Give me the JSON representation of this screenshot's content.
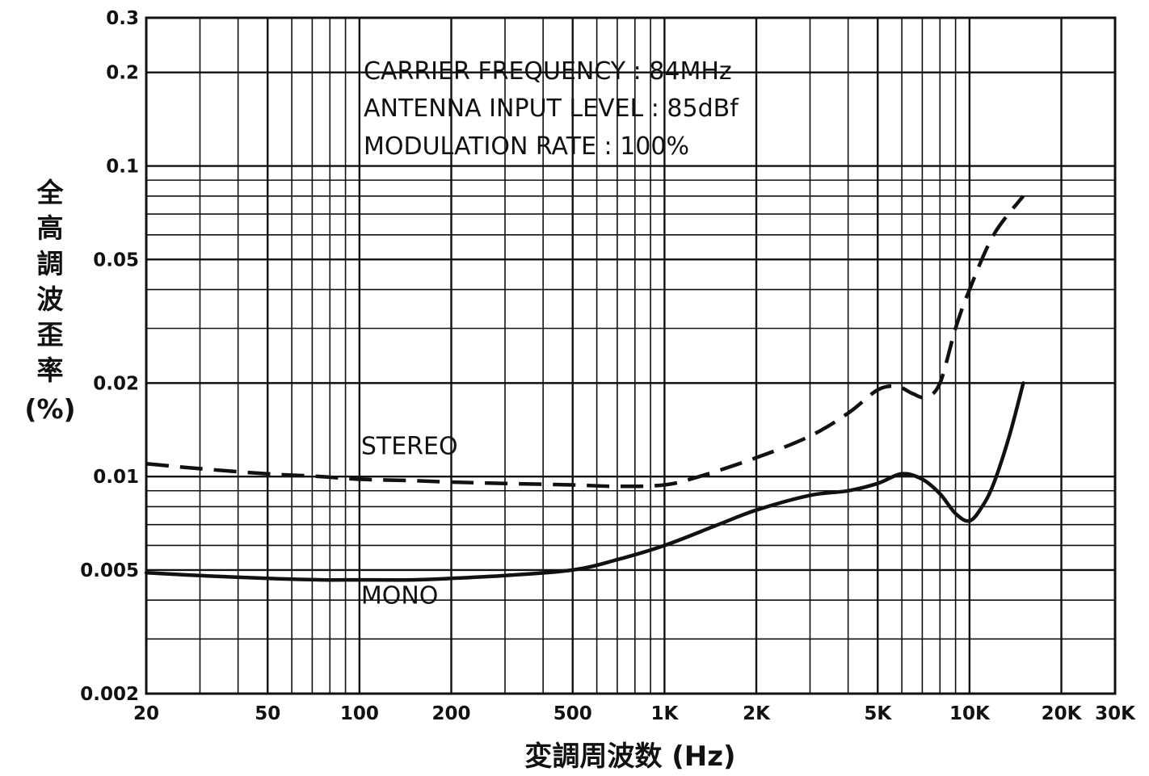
{
  "chart_data": {
    "type": "line",
    "x_scale": "log",
    "y_scale": "log",
    "xlim": [
      20,
      30000
    ],
    "ylim": [
      0.002,
      0.3
    ],
    "grid": true,
    "xlabel": "変調周波数 (Hz)",
    "ylabel": "全高調波歪率 (%)",
    "x_ticks": [
      {
        "value": 20,
        "label": "20"
      },
      {
        "value": 50,
        "label": "50"
      },
      {
        "value": 100,
        "label": "100"
      },
      {
        "value": 200,
        "label": "200"
      },
      {
        "value": 500,
        "label": "500"
      },
      {
        "value": 1000,
        "label": "1K"
      },
      {
        "value": 2000,
        "label": "2K"
      },
      {
        "value": 5000,
        "label": "5K"
      },
      {
        "value": 10000,
        "label": "10K"
      },
      {
        "value": 20000,
        "label": "20K"
      },
      {
        "value": 30000,
        "label": "30K"
      }
    ],
    "y_ticks": [
      {
        "value": 0.002,
        "label": "0.002"
      },
      {
        "value": 0.005,
        "label": "0.005"
      },
      {
        "value": 0.01,
        "label": "0.01"
      },
      {
        "value": 0.02,
        "label": "0.02"
      },
      {
        "value": 0.05,
        "label": "0.05"
      },
      {
        "value": 0.1,
        "label": "0.1"
      },
      {
        "value": 0.2,
        "label": "0.2"
      },
      {
        "value": 0.3,
        "label": "0.3"
      }
    ],
    "annotations": [
      "CARRIER FREQUENCY : 84MHz",
      "ANTENNA INPUT LEVEL : 85dBf",
      "MODULATION RATE : 100%"
    ],
    "series": [
      {
        "name": "STEREO",
        "style": "dashed",
        "x": [
          20,
          30,
          50,
          75,
          100,
          150,
          200,
          300,
          500,
          700,
          1000,
          1300,
          2000,
          3000,
          4000,
          5000,
          5800,
          6500,
          7200,
          8000,
          9000,
          10000,
          12000,
          15000
        ],
        "y": [
          0.011,
          0.0106,
          0.0102,
          0.01,
          0.0098,
          0.0097,
          0.0096,
          0.0095,
          0.0094,
          0.0093,
          0.0094,
          0.01,
          0.0115,
          0.0135,
          0.016,
          0.019,
          0.0195,
          0.0185,
          0.018,
          0.02,
          0.03,
          0.04,
          0.06,
          0.08
        ]
      },
      {
        "name": "MONO",
        "style": "solid",
        "x": [
          20,
          30,
          50,
          75,
          100,
          150,
          200,
          300,
          500,
          700,
          1000,
          1500,
          2000,
          3000,
          4000,
          5000,
          6000,
          7000,
          8000,
          9000,
          10000,
          11000,
          12000,
          13500,
          15000
        ],
        "y": [
          0.0049,
          0.0048,
          0.0047,
          0.00465,
          0.00465,
          0.00465,
          0.0047,
          0.0048,
          0.005,
          0.0054,
          0.006,
          0.007,
          0.0078,
          0.0087,
          0.009,
          0.0095,
          0.0102,
          0.0098,
          0.0088,
          0.0076,
          0.0072,
          0.008,
          0.0095,
          0.0135,
          0.02
        ]
      }
    ],
    "series_label_positions": [
      {
        "name": "STEREO",
        "x": 100,
        "y": 0.0118
      },
      {
        "name": "MONO",
        "x": 100,
        "y": 0.0039
      }
    ]
  }
}
